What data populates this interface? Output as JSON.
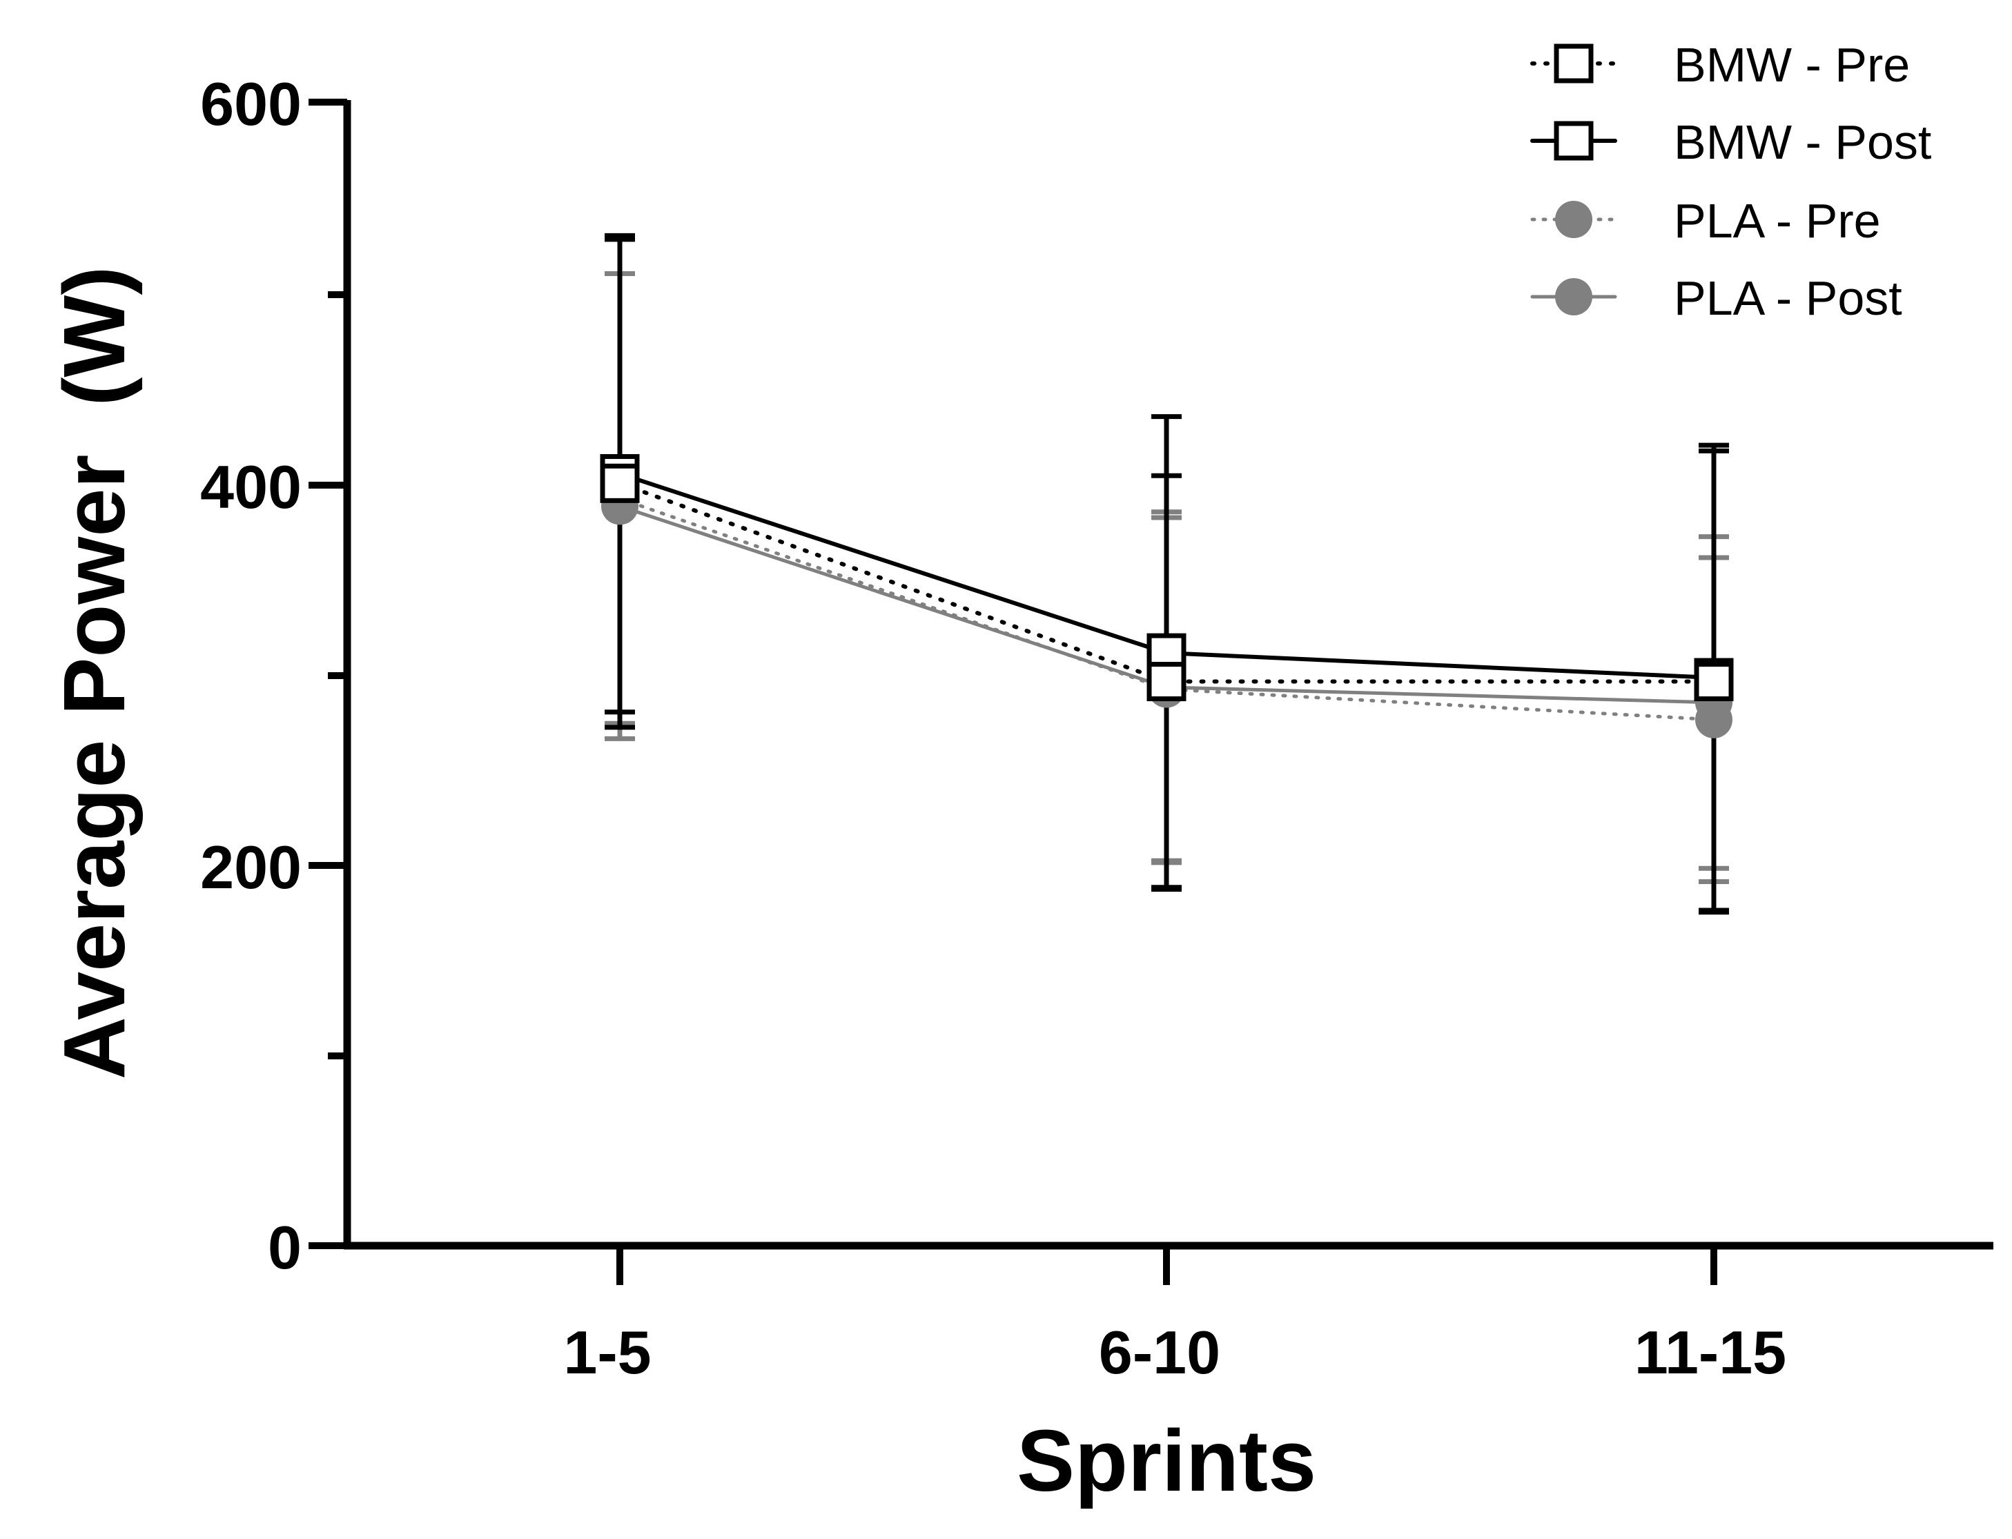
{
  "chart_data": {
    "type": "line",
    "title": "",
    "xlabel": "Sprints",
    "ylabel": "Average Power  (W)",
    "categories": [
      "1-5",
      "6-10",
      "11-15"
    ],
    "ylim": [
      0,
      600
    ],
    "y_major_ticks": [
      0,
      200,
      400,
      600
    ],
    "y_minor_ticks": [
      100,
      300,
      500
    ],
    "y_tick_labels": [
      "0",
      "200",
      "400",
      "600"
    ],
    "legend_position": "top-right",
    "series": [
      {
        "name": "BMW - Pre",
        "values": [
          400,
          296,
          296
        ],
        "errors": [
          128,
          108,
          121
        ],
        "color": "#000000",
        "line": "dotted",
        "marker": "open-square"
      },
      {
        "name": "BMW - Post",
        "values": [
          405,
          311,
          298
        ],
        "errors": [
          125,
          124,
          122
        ],
        "color": "#000000",
        "line": "solid",
        "marker": "open-square"
      },
      {
        "name": "PLA - Pre",
        "values": [
          392,
          292,
          276
        ],
        "errors": [
          118,
          90,
          85
        ],
        "color": "#808080",
        "line": "dotted",
        "marker": "filled-circle"
      },
      {
        "name": "PLA - Post",
        "values": [
          388,
          293,
          285
        ],
        "errors": [
          122,
          92,
          87
        ],
        "color": "#808080",
        "line": "solid",
        "marker": "filled-circle"
      }
    ]
  }
}
